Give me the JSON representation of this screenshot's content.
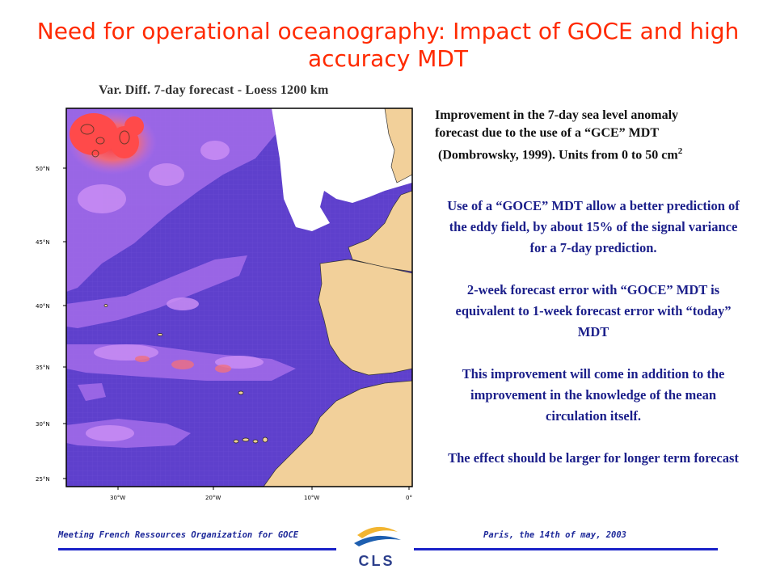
{
  "slide": {
    "title": "Need for operational oceanography: Impact of GOCE and high accuracy MDT",
    "map_title": "Var. Diff. 7-day forecast - Loess 1200 km",
    "caption": {
      "line1": "Improvement in the 7-day sea level anomaly",
      "line2": "forecast due to the use of a “GCE” MDT",
      "line3": "(Dombrowsky, 1999). Units from 0 to 50 cm",
      "superscript": "2"
    },
    "paragraphs": [
      "Use of a “GOCE” MDT allow a better prediction of the eddy field, by about 15% of the signal variance for a 7-day prediction.",
      "2-week forecast error with “GOCE” MDT is equivalent to 1-week forecast error with “today” MDT",
      "This improvement will come in addition to the improvement in the knowledge of the mean circulation itself.",
      "The effect should be larger for longer term forecast"
    ],
    "footer_left": "Meeting French Ressources Organization for GOCE",
    "footer_right": "Paris, the 14th of may, 2003",
    "logo_text": "CLS"
  },
  "map": {
    "lat_labels": [
      "50°N",
      "45°N",
      "40°N",
      "35°N",
      "30°N",
      "25°N"
    ],
    "lon_labels": [
      "30°W",
      "20°W",
      "10°W",
      "0°"
    ],
    "colors": {
      "ocean_low": "#5a3ec8",
      "ocean_mid": "#9b62e6",
      "ocean_high": "#e85c6a",
      "land": "#f2d09a",
      "title_red": "#ff2a00",
      "text_blue": "#1b1f8a"
    }
  }
}
